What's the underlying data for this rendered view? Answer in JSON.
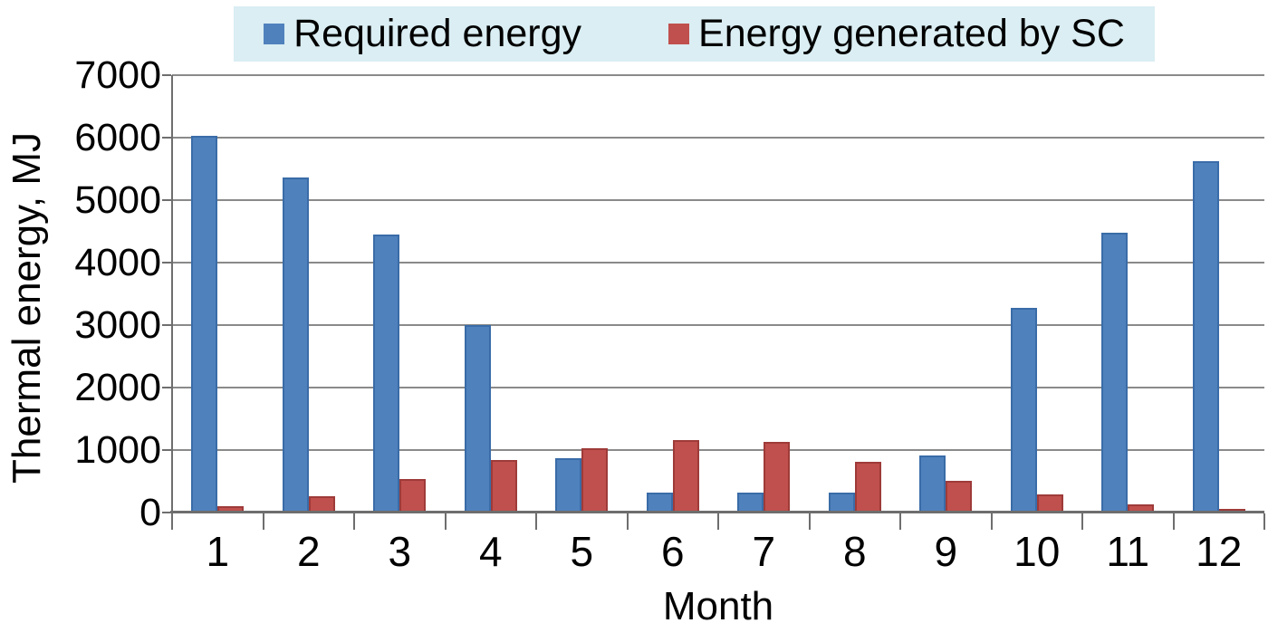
{
  "chart_data": {
    "type": "bar",
    "title": "",
    "xlabel": "Month",
    "ylabel": "Thermal energy, MJ",
    "categories": [
      "1",
      "2",
      "3",
      "4",
      "5",
      "6",
      "7",
      "8",
      "9",
      "10",
      "11",
      "12"
    ],
    "series": [
      {
        "name": "Required energy",
        "color": "#4F81BD",
        "edge_color": "#3A6CA8",
        "values": [
          6030,
          5360,
          4450,
          3000,
          870,
          320,
          320,
          320,
          910,
          3280,
          4480,
          5620
        ]
      },
      {
        "name": "Energy generated by SC",
        "color": "#C0504D",
        "edge_color": "#9E3B39",
        "values": [
          100,
          260,
          540,
          840,
          1030,
          1160,
          1130,
          810,
          510,
          290,
          130,
          60
        ]
      }
    ],
    "ylim": [
      0,
      7000
    ],
    "yticks": [
      0,
      1000,
      2000,
      3000,
      4000,
      5000,
      6000,
      7000
    ],
    "grid": true,
    "legend_position": "top",
    "legend_background": "#DAEEF3",
    "gridline_color": "#8A8A8A",
    "axis_color": "#6E6E6E",
    "text_color": "#000000"
  }
}
